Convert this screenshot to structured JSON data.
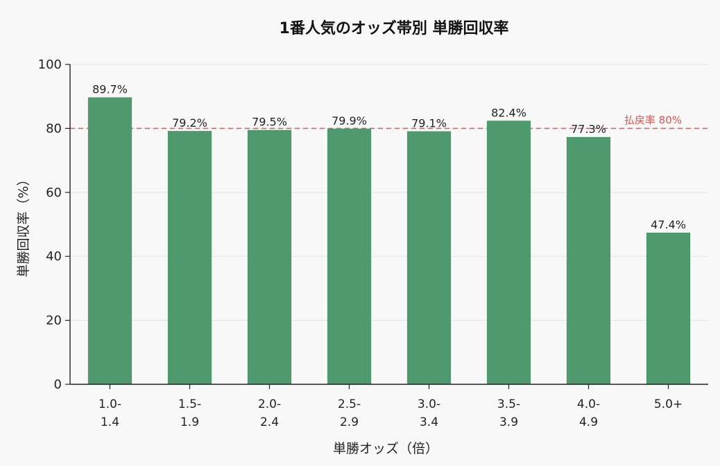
{
  "chart_data": {
    "type": "bar",
    "title": "1番人気のオッズ帯別 単勝回収率",
    "xlabel": "単勝オッズ（倍）",
    "ylabel": "単勝回収率（%）",
    "categories": [
      [
        "1.0-",
        "1.4"
      ],
      [
        "1.5-",
        "1.9"
      ],
      [
        "2.0-",
        "2.4"
      ],
      [
        "2.5-",
        "2.9"
      ],
      [
        "3.0-",
        "3.4"
      ],
      [
        "3.5-",
        "3.9"
      ],
      [
        "4.0-",
        "4.9"
      ],
      [
        "5.0+"
      ]
    ],
    "values": [
      89.7,
      79.2,
      79.5,
      79.9,
      79.1,
      82.4,
      77.3,
      47.4
    ],
    "value_labels": [
      "89.7%",
      "79.2%",
      "79.5%",
      "79.9%",
      "79.1%",
      "82.4%",
      "77.3%",
      "47.4%"
    ],
    "ylim": [
      0,
      100
    ],
    "yticks": [
      0,
      20,
      40,
      60,
      80,
      100
    ],
    "grid": true,
    "bar_color": "#4e9a6e",
    "reference_line": {
      "value": 80,
      "label": "払戻率 80%",
      "color": "#d9534f",
      "style": "dashed"
    }
  }
}
